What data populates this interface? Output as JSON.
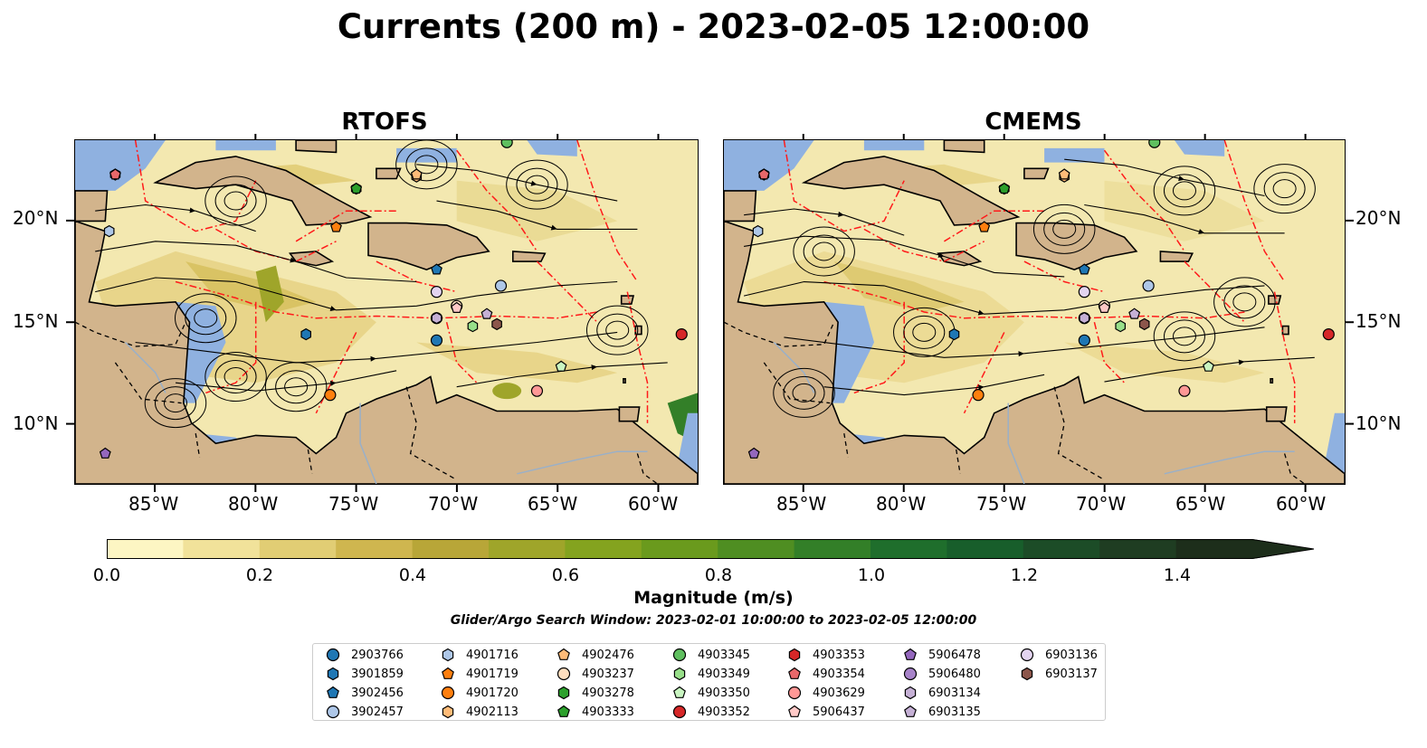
{
  "title": "Currents (200 m) - 2023-02-05 12:00:00",
  "panels": [
    {
      "title": "RTOFS"
    },
    {
      "title": "CMEMS"
    }
  ],
  "lon_ticks": [
    "85°W",
    "80°W",
    "75°W",
    "70°W",
    "65°W",
    "60°W"
  ],
  "lat_ticks": [
    "20°N",
    "15°N",
    "10°N"
  ],
  "colorbar": {
    "label": "Magnitude (m/s)",
    "ticks": [
      "0.0",
      "0.2",
      "0.4",
      "0.6",
      "0.8",
      "1.0",
      "1.2",
      "1.4"
    ],
    "colors": [
      "#fdf6c3",
      "#f1e29a",
      "#e1cd74",
      "#cfb64f",
      "#b8a638",
      "#9fa52a",
      "#84a31f",
      "#6a9a1d",
      "#4f8e22",
      "#337f28",
      "#1f6e2c",
      "#185e2b",
      "#1c4c27",
      "#1f3d22",
      "#1d2e1b"
    ],
    "extend": "max"
  },
  "search_window": "Glider/Argo Search Window: 2023-02-01 10:00:00 to 2023-02-05 12:00:00",
  "legend": [
    {
      "id": "2903766",
      "color": "#1f77b4",
      "marker": "circle"
    },
    {
      "id": "3901859",
      "color": "#1f77b4",
      "marker": "hexagon"
    },
    {
      "id": "3902456",
      "color": "#1f77b4",
      "marker": "pentagon"
    },
    {
      "id": "3902457",
      "color": "#aec7e8",
      "marker": "circle"
    },
    {
      "id": "4901716",
      "color": "#aec7e8",
      "marker": "hexagon"
    },
    {
      "id": "4901719",
      "color": "#ff7f0e",
      "marker": "pentagon"
    },
    {
      "id": "4901720",
      "color": "#ff7f0e",
      "marker": "circle"
    },
    {
      "id": "4902113",
      "color": "#ffbb78",
      "marker": "hexagon"
    },
    {
      "id": "4902476",
      "color": "#ffbb78",
      "marker": "pentagon"
    },
    {
      "id": "4903237",
      "color": "#ffdfbf",
      "marker": "circle"
    },
    {
      "id": "4903278",
      "color": "#2ca02c",
      "marker": "hexagon"
    },
    {
      "id": "4903333",
      "color": "#2ca02c",
      "marker": "pentagon"
    },
    {
      "id": "4903345",
      "color": "#5fbf5f",
      "marker": "circle"
    },
    {
      "id": "4903349",
      "color": "#98df8a",
      "marker": "hexagon"
    },
    {
      "id": "4903350",
      "color": "#c9f5c1",
      "marker": "pentagon"
    },
    {
      "id": "4903352",
      "color": "#d62728",
      "marker": "circle"
    },
    {
      "id": "4903353",
      "color": "#d62728",
      "marker": "hexagon"
    },
    {
      "id": "4903354",
      "color": "#e8686a",
      "marker": "pentagon"
    },
    {
      "id": "4903629",
      "color": "#ff9896",
      "marker": "circle"
    },
    {
      "id": "5906437",
      "color": "#ffc9c7",
      "marker": "pentagon"
    },
    {
      "id": "5906478",
      "color": "#9467bd",
      "marker": "pentagon"
    },
    {
      "id": "5906480",
      "color": "#a783c9",
      "marker": "circle"
    },
    {
      "id": "6903134",
      "color": "#c5b0d5",
      "marker": "hexagon"
    },
    {
      "id": "6903135",
      "color": "#c5b0d5",
      "marker": "pentagon"
    },
    {
      "id": "6903136",
      "color": "#e3d4f0",
      "marker": "circle"
    },
    {
      "id": "6903137",
      "color": "#8c564b",
      "marker": "hexagon"
    }
  ],
  "chart_data": {
    "type": "map",
    "xlim": [
      -89,
      -58
    ],
    "ylim": [
      7,
      24
    ],
    "floats": [
      {
        "id": "2903766",
        "lon": -71.0,
        "lat": 14.1
      },
      {
        "id": "3901859",
        "lon": -77.5,
        "lat": 14.4
      },
      {
        "id": "3902456",
        "lon": -71.0,
        "lat": 17.6
      },
      {
        "id": "3902457",
        "lon": -67.8,
        "lat": 16.8
      },
      {
        "id": "4901716",
        "lon": -87.3,
        "lat": 19.5
      },
      {
        "id": "4901719",
        "lon": -76.0,
        "lat": 19.7
      },
      {
        "id": "4901720",
        "lon": -76.3,
        "lat": 11.4
      },
      {
        "id": "4902113",
        "lon": -72.0,
        "lat": 22.2
      },
      {
        "id": "4902476",
        "lon": -72.0,
        "lat": 22.3
      },
      {
        "id": "4903237",
        "lon": -70.0,
        "lat": 15.8
      },
      {
        "id": "4903278",
        "lon": -75.0,
        "lat": 21.6
      },
      {
        "id": "4903333",
        "lon": -75.0,
        "lat": 21.6
      },
      {
        "id": "4903345",
        "lon": -67.5,
        "lat": 23.9
      },
      {
        "id": "4903349",
        "lon": -69.2,
        "lat": 14.8
      },
      {
        "id": "4903350",
        "lon": -64.8,
        "lat": 12.8
      },
      {
        "id": "4903352",
        "lon": -58.8,
        "lat": 14.4
      },
      {
        "id": "4903353",
        "lon": -87.0,
        "lat": 22.3
      },
      {
        "id": "4903354",
        "lon": -87.0,
        "lat": 22.3
      },
      {
        "id": "4903629",
        "lon": -66.0,
        "lat": 11.6
      },
      {
        "id": "5906437",
        "lon": -70.0,
        "lat": 15.7
      },
      {
        "id": "5906478",
        "lon": -87.5,
        "lat": 8.5
      },
      {
        "id": "5906480",
        "lon": -71.0,
        "lat": 15.2
      },
      {
        "id": "6903134",
        "lon": -71.0,
        "lat": 15.2
      },
      {
        "id": "6903135",
        "lon": -68.5,
        "lat": 15.4
      },
      {
        "id": "6903136",
        "lon": -71.0,
        "lat": 16.5
      },
      {
        "id": "6903137",
        "lon": -68.0,
        "lat": 14.9
      }
    ]
  }
}
